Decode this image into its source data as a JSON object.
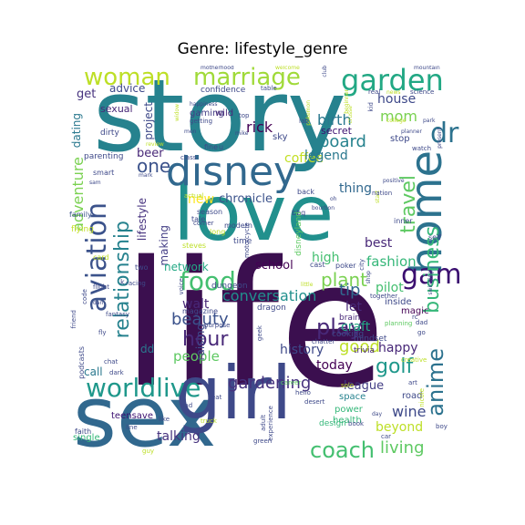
{
  "title": "Genre: lifestyle_genre",
  "words": [
    {
      "t": "life",
      "c": "#3b0f4f"
    },
    {
      "t": "story",
      "c": "#26828e"
    },
    {
      "t": "love",
      "c": "#21908d"
    },
    {
      "t": "sex",
      "c": "#31688e"
    },
    {
      "t": "girl",
      "c": "#3e4989"
    },
    {
      "t": "disney",
      "c": "#31688e"
    },
    {
      "t": "home",
      "c": "#2c728e"
    },
    {
      "t": "aviation",
      "c": "#3b528b"
    },
    {
      "t": "marriage",
      "c": "#a0da39"
    },
    {
      "t": "garden",
      "c": "#22a884"
    },
    {
      "t": "woman",
      "c": "#bddf26"
    },
    {
      "t": "worldlive",
      "c": "#1f988b"
    },
    {
      "t": "game",
      "c": "#3b0f70"
    },
    {
      "t": "food",
      "c": "#44bf70"
    },
    {
      "t": "coach",
      "c": "#44bf70"
    },
    {
      "t": "anime",
      "c": "#2c728e"
    },
    {
      "t": "business",
      "c": "#35b779"
    },
    {
      "t": "relationship",
      "c": "#26828e"
    },
    {
      "t": "travel",
      "c": "#5ec962"
    },
    {
      "t": "hour",
      "c": "#482878"
    },
    {
      "t": "play",
      "c": "#482878"
    },
    {
      "t": "gardening",
      "c": "#46327e"
    },
    {
      "t": "golf",
      "c": "#1f988b"
    },
    {
      "t": "beauty",
      "c": "#3b528b"
    },
    {
      "t": "living",
      "c": "#5ec962"
    },
    {
      "t": "plant",
      "c": "#7ad151"
    },
    {
      "t": "dr",
      "c": "#2c728e"
    },
    {
      "t": "one",
      "c": "#3b528b"
    },
    {
      "t": "adventure",
      "c": "#7ad151"
    },
    {
      "t": "conversation",
      "c": "#21908d"
    },
    {
      "t": "fashion",
      "c": "#35b779"
    },
    {
      "t": "board",
      "c": "#26828e"
    },
    {
      "t": "good",
      "c": "#bddf26"
    },
    {
      "t": "tip",
      "c": "#31688e"
    },
    {
      "t": "people",
      "c": "#5ec962"
    },
    {
      "t": "wine",
      "c": "#3e4989"
    },
    {
      "t": "beyond",
      "c": "#bddf26"
    },
    {
      "t": "talking",
      "c": "#46327e"
    },
    {
      "t": "pilot",
      "c": "#44bf70"
    },
    {
      "t": "today",
      "c": "#440154"
    },
    {
      "t": "history",
      "c": "#3e4989"
    },
    {
      "t": "rick",
      "c": "#440154"
    },
    {
      "t": "birth",
      "c": "#2a788e"
    },
    {
      "t": "mom",
      "c": "#7ad151"
    },
    {
      "t": "house",
      "c": "#3e4989"
    },
    {
      "t": "new",
      "c": "#fde725"
    },
    {
      "t": "coffee",
      "c": "#c2df23"
    },
    {
      "t": "legend",
      "c": "#2a788e"
    },
    {
      "t": "thing",
      "c": "#31688e"
    },
    {
      "t": "high",
      "c": "#44bf70"
    },
    {
      "t": "best",
      "c": "#482878"
    },
    {
      "t": "happy",
      "c": "#482878"
    },
    {
      "t": "craft",
      "c": "#22a884"
    },
    {
      "t": "let",
      "c": "#482878"
    },
    {
      "t": "league",
      "c": "#433e85"
    },
    {
      "t": "walt",
      "c": "#482878"
    },
    {
      "t": "school",
      "c": "#440154"
    },
    {
      "t": "chronicle",
      "c": "#3b528b"
    },
    {
      "t": "making",
      "c": "#433e85"
    },
    {
      "t": "raising",
      "c": "#3e4989"
    },
    {
      "t": "beer",
      "c": "#482878"
    },
    {
      "t": "project",
      "c": "#3e4989"
    },
    {
      "t": "lifestyle",
      "c": "#46327e"
    },
    {
      "t": "network",
      "c": "#22a884"
    },
    {
      "t": "get",
      "c": "#46327e"
    },
    {
      "t": "advice",
      "c": "#3e4989"
    },
    {
      "t": "call",
      "c": "#2a788e"
    },
    {
      "t": "dd",
      "c": "#2a788e"
    },
    {
      "t": "dating",
      "c": "#2a788e"
    },
    {
      "t": "sexual",
      "c": "#482878"
    },
    {
      "t": "secret",
      "c": "#3b0f70"
    },
    {
      "t": "stop",
      "c": "#3e4989"
    },
    {
      "t": "confidence",
      "c": "#3e4989"
    },
    {
      "t": "parenting",
      "c": "#3e4989"
    },
    {
      "t": "gaming",
      "c": "#433e85"
    },
    {
      "t": "wild",
      "c": "#482878"
    },
    {
      "t": "sky",
      "c": "#3e4989"
    },
    {
      "t": "inside",
      "c": "#3e4989"
    },
    {
      "t": "magic",
      "c": "#440154"
    },
    {
      "t": "mindset",
      "c": "#3e4989"
    },
    {
      "t": "road",
      "c": "#3e4989"
    },
    {
      "t": "space",
      "c": "#26828e"
    },
    {
      "t": "power",
      "c": "#35b779"
    },
    {
      "t": "health",
      "c": "#35b779"
    },
    {
      "t": "design",
      "c": "#35b779"
    },
    {
      "t": "single",
      "c": "#35b779"
    },
    {
      "t": "teensave",
      "c": "#3b0f70"
    },
    {
      "t": "cooking",
      "c": "#3e4989"
    },
    {
      "t": "brain",
      "c": "#482878"
    },
    {
      "t": "trivia",
      "c": "#482878"
    },
    {
      "t": "flying",
      "c": "#c2df23"
    },
    {
      "t": "family",
      "c": "#3b528b"
    },
    {
      "t": "smart",
      "c": "#3e4989"
    },
    {
      "t": "tale",
      "c": "#3e4989"
    },
    {
      "t": "time",
      "c": "#3e4989"
    },
    {
      "t": "steves",
      "c": "#bddf26"
    },
    {
      "t": "card",
      "c": "#bddf26"
    },
    {
      "t": "long",
      "c": "#bddf26"
    },
    {
      "t": "modern",
      "c": "#3e4989"
    },
    {
      "t": "motorcycle",
      "c": "#3e4989"
    },
    {
      "t": "season",
      "c": "#3e4989"
    },
    {
      "t": "back",
      "c": "#3e4989"
    },
    {
      "t": "bbq",
      "c": "#3e4989"
    },
    {
      "t": "disneyland",
      "c": "#5ec962"
    },
    {
      "t": "self",
      "c": "#3e4989"
    },
    {
      "t": "inner",
      "c": "#3e4989"
    },
    {
      "t": "cast",
      "c": "#3e4989"
    },
    {
      "t": "poker",
      "c": "#3e4989"
    },
    {
      "t": "dungeon",
      "c": "#3e4989"
    },
    {
      "t": "magazine",
      "c": "#3e4989"
    },
    {
      "t": "dragon",
      "c": "#3e4989"
    },
    {
      "t": "together",
      "c": "#3e4989"
    },
    {
      "t": "planning",
      "c": "#5ec962"
    },
    {
      "t": "chatter",
      "c": "#3e4989"
    },
    {
      "t": "career",
      "c": "#5ec962"
    },
    {
      "t": "hello",
      "c": "#3e4989"
    },
    {
      "t": "desert",
      "c": "#3e4989"
    },
    {
      "t": "solo",
      "c": "#c2df23"
    },
    {
      "t": "creative",
      "c": "#bddf26"
    },
    {
      "t": "art",
      "c": "#3e4989"
    },
    {
      "t": "nicole",
      "c": "#bddf26"
    },
    {
      "t": "book",
      "c": "#3e4989"
    },
    {
      "t": "car",
      "c": "#3e4989"
    },
    {
      "t": "boy",
      "c": "#3e4989"
    },
    {
      "t": "green",
      "c": "#3e4989"
    },
    {
      "t": "guy",
      "c": "#bddf26"
    },
    {
      "t": "faith",
      "c": "#3e4989"
    },
    {
      "t": "line",
      "c": "#3e4989"
    },
    {
      "t": "like",
      "c": "#3e4989"
    },
    {
      "t": "truck",
      "c": "#bddf26"
    },
    {
      "t": "bad",
      "c": "#3e4989"
    },
    {
      "t": "eat",
      "c": "#3e4989"
    },
    {
      "t": "experience",
      "c": "#3e4989"
    },
    {
      "t": "adult",
      "c": "#3e4989"
    },
    {
      "t": "podcasts",
      "c": "#3e4989"
    },
    {
      "t": "chat",
      "c": "#3e4989"
    },
    {
      "t": "dark",
      "c": "#3e4989"
    },
    {
      "t": "fly",
      "c": "#3e4989"
    },
    {
      "t": "friend",
      "c": "#3e4989"
    },
    {
      "t": "code",
      "c": "#3e4989"
    },
    {
      "t": "flight",
      "c": "#3e4989"
    },
    {
      "t": "fantasy",
      "c": "#3e4989"
    },
    {
      "t": "racing",
      "c": "#3e4989"
    },
    {
      "t": "purpose",
      "c": "#3e4989"
    },
    {
      "t": "geek",
      "c": "#3e4989"
    },
    {
      "t": "voice",
      "c": "#3e4989"
    },
    {
      "t": "rc",
      "c": "#3e4989"
    },
    {
      "t": "go",
      "c": "#3e4989"
    },
    {
      "t": "dad",
      "c": "#3e4989"
    },
    {
      "t": "motherhood",
      "c": "#3e4989"
    },
    {
      "t": "welcome",
      "c": "#bddf26"
    },
    {
      "t": "club",
      "c": "#3e4989"
    },
    {
      "t": "pokemon",
      "c": "#bddf26"
    },
    {
      "t": "beginner",
      "c": "#bddf26"
    },
    {
      "t": "crusse",
      "c": "#bddf26"
    },
    {
      "t": "real",
      "c": "#3e4989"
    },
    {
      "t": "news",
      "c": "#bddf26"
    },
    {
      "t": "mountain",
      "c": "#3e4989"
    },
    {
      "t": "science",
      "c": "#3e4989"
    },
    {
      "t": "park",
      "c": "#3e4989"
    },
    {
      "t": "college",
      "c": "#bddf26"
    },
    {
      "t": "planner",
      "c": "#3e4989"
    },
    {
      "t": "present",
      "c": "#3e4989"
    },
    {
      "t": "watch",
      "c": "#3e4989"
    },
    {
      "t": "kid",
      "c": "#3e4989"
    },
    {
      "t": "positive",
      "c": "#3e4989"
    },
    {
      "t": "start",
      "c": "#bddf26"
    },
    {
      "t": "nation",
      "c": "#3e4989"
    },
    {
      "t": "oh",
      "c": "#3e4989"
    },
    {
      "t": "bourbon",
      "c": "#3e4989"
    },
    {
      "t": "city",
      "c": "#3e4989"
    },
    {
      "t": "shop",
      "c": "#3e4989"
    },
    {
      "t": "swinging",
      "c": "#3e4989"
    },
    {
      "t": "lab",
      "c": "#3e4989"
    },
    {
      "t": "getting",
      "c": "#3e4989"
    },
    {
      "t": "happiness",
      "c": "#3e4989"
    },
    {
      "t": "top",
      "c": "#3e4989"
    },
    {
      "t": "mike",
      "c": "#3e4989"
    },
    {
      "t": "widow",
      "c": "#bddf26"
    },
    {
      "t": "review",
      "c": "#bddf26"
    },
    {
      "t": "class",
      "c": "#3e4989"
    },
    {
      "t": "fine",
      "c": "#3e4989"
    },
    {
      "t": "u",
      "c": "#3e4989"
    },
    {
      "t": "mark",
      "c": "#3e4989"
    },
    {
      "t": "men",
      "c": "#3e4989"
    },
    {
      "t": "sam",
      "c": "#3e4989"
    },
    {
      "t": "dirty",
      "c": "#3e4989"
    },
    {
      "t": "actual",
      "c": "#bddf26"
    },
    {
      "t": "corner",
      "c": "#3e4989"
    },
    {
      "t": "table",
      "c": "#3e4989"
    },
    {
      "t": "day",
      "c": "#3e4989"
    },
    {
      "t": "little",
      "c": "#bddf26"
    },
    {
      "t": "two",
      "c": "#3e4989"
    },
    {
      "t": "k",
      "c": "#3e4989"
    },
    {
      "t": "dan",
      "c": "#3e4989"
    }
  ]
}
